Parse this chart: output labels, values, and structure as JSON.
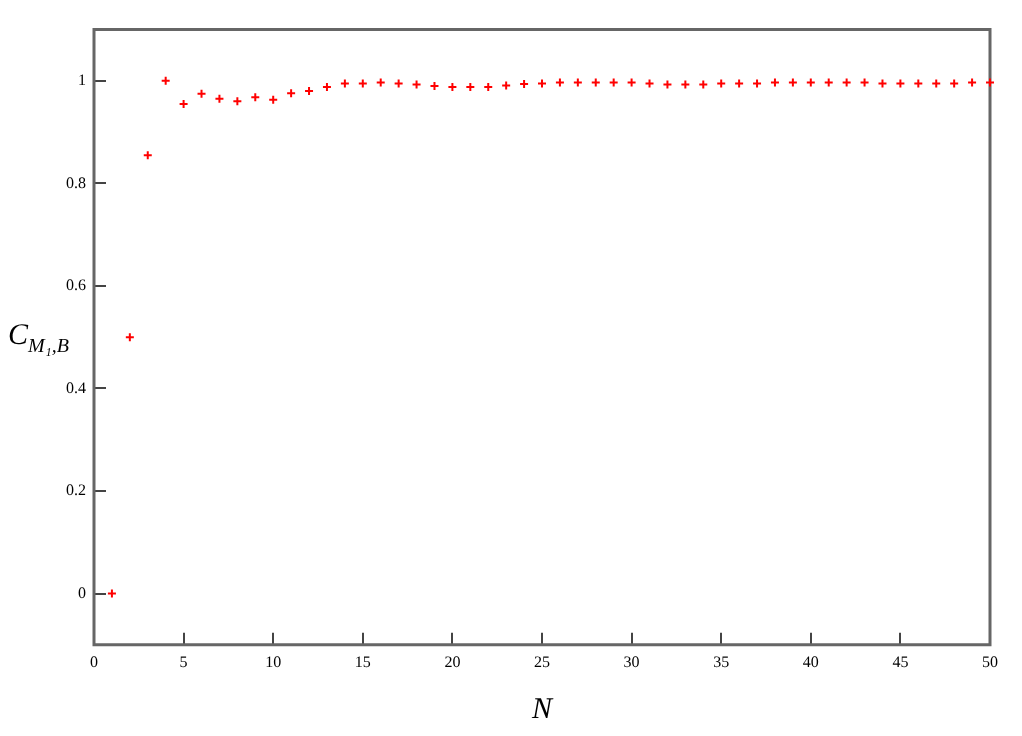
{
  "chart_data": {
    "type": "scatter",
    "xlabel": "N",
    "ylabel": "C$_{M₁,B}$",
    "x": [
      1,
      2,
      3,
      4,
      5,
      6,
      7,
      8,
      9,
      10,
      11,
      12,
      13,
      14,
      15,
      16,
      17,
      18,
      19,
      20,
      21,
      22,
      23,
      24,
      25,
      26,
      27,
      28,
      29,
      30,
      31,
      32,
      33,
      34,
      35,
      36,
      37,
      38,
      39,
      40,
      41,
      42,
      43,
      44,
      45,
      46,
      47,
      48,
      49,
      50
    ],
    "series": [
      {
        "color": "#ff0000",
        "values": [
          0,
          0.5,
          0.855,
          1.0,
          0.955,
          0.975,
          0.965,
          0.96,
          0.968,
          0.963,
          0.976,
          0.98,
          0.988,
          0.995,
          0.995,
          0.997,
          0.995,
          0.993,
          0.99,
          0.988,
          0.988,
          0.988,
          0.991,
          0.994,
          0.995,
          0.997,
          0.997,
          0.997,
          0.997,
          0.997,
          0.995,
          0.993,
          0.993,
          0.993,
          0.995,
          0.995,
          0.995,
          0.997,
          0.997,
          0.997,
          0.997,
          0.997,
          0.997,
          0.995,
          0.995,
          0.995,
          0.995,
          0.995,
          0.997,
          0.997
        ]
      }
    ],
    "xlim": [
      0,
      50
    ],
    "xticks": [
      0,
      5,
      10,
      15,
      20,
      25,
      30,
      35,
      40,
      45,
      50
    ],
    "ylim": [
      -0.1,
      1.1
    ],
    "yticks": [
      0,
      0.2,
      0.4,
      0.6,
      0.8,
      1
    ],
    "marker": "cross",
    "grid": false,
    "legend": false
  }
}
